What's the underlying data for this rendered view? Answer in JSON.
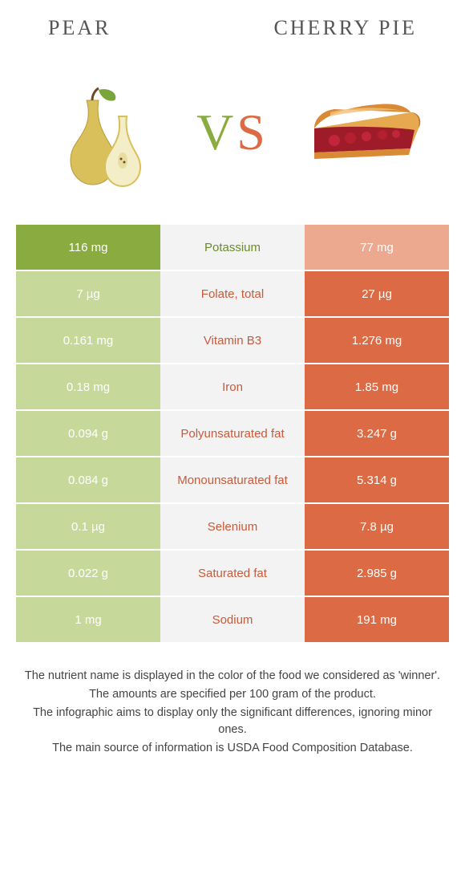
{
  "left": {
    "title": "Pear"
  },
  "right": {
    "title": "Cherry Pie"
  },
  "vs": {
    "v": "V",
    "s": "S"
  },
  "colors": {
    "left_win": "#8aab3f",
    "left_lose": "#c7d89b",
    "right_win": "#db6a45",
    "right_lose": "#eca98f",
    "mid_bg": "#f3f3f3",
    "mid_left_text": "#6a8a2a",
    "mid_right_text": "#c85a3a"
  },
  "rows": [
    {
      "left": "116 mg",
      "name": "Potassium",
      "right": "77 mg",
      "winner": "left"
    },
    {
      "left": "7 µg",
      "name": "Folate, total",
      "right": "27 µg",
      "winner": "right"
    },
    {
      "left": "0.161 mg",
      "name": "Vitamin B3",
      "right": "1.276 mg",
      "winner": "right"
    },
    {
      "left": "0.18 mg",
      "name": "Iron",
      "right": "1.85 mg",
      "winner": "right"
    },
    {
      "left": "0.094 g",
      "name": "Polyunsaturated fat",
      "right": "3.247 g",
      "winner": "right"
    },
    {
      "left": "0.084 g",
      "name": "Monounsaturated fat",
      "right": "5.314 g",
      "winner": "right"
    },
    {
      "left": "0.1 µg",
      "name": "Selenium",
      "right": "7.8 µg",
      "winner": "right"
    },
    {
      "left": "0.022 g",
      "name": "Saturated fat",
      "right": "2.985 g",
      "winner": "right"
    },
    {
      "left": "1 mg",
      "name": "Sodium",
      "right": "191 mg",
      "winner": "right"
    }
  ],
  "footer": {
    "l1": "The nutrient name is displayed in the color of the food we considered as 'winner'.",
    "l2": "The amounts are specified per 100 gram of the product.",
    "l3": "The infographic aims to display only the significant differences, ignoring minor ones.",
    "l4": "The main source of information is USDA Food Composition Database."
  }
}
